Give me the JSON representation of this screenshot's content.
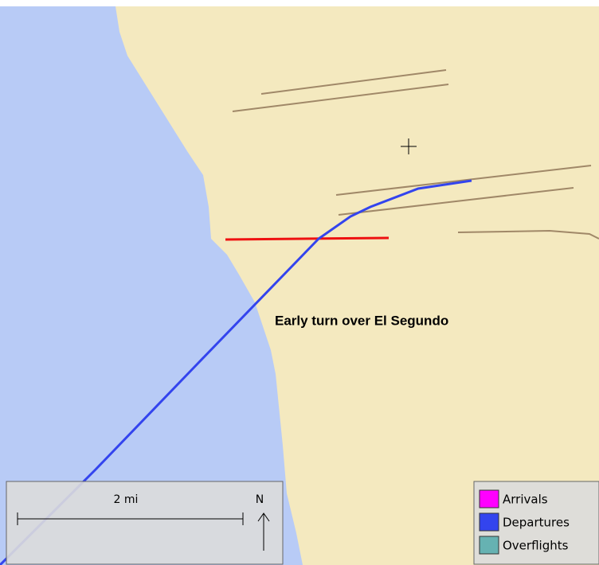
{
  "annotation": "Early turn over El Segundo",
  "scale_bar": {
    "label": "2 mi",
    "north": "N"
  },
  "legend": [
    {
      "name": "Arrivals",
      "color": "#ff00ff"
    },
    {
      "name": "Departures",
      "color": "#3344ee"
    },
    {
      "name": "Overflights",
      "color": "#66b2b2"
    }
  ]
}
